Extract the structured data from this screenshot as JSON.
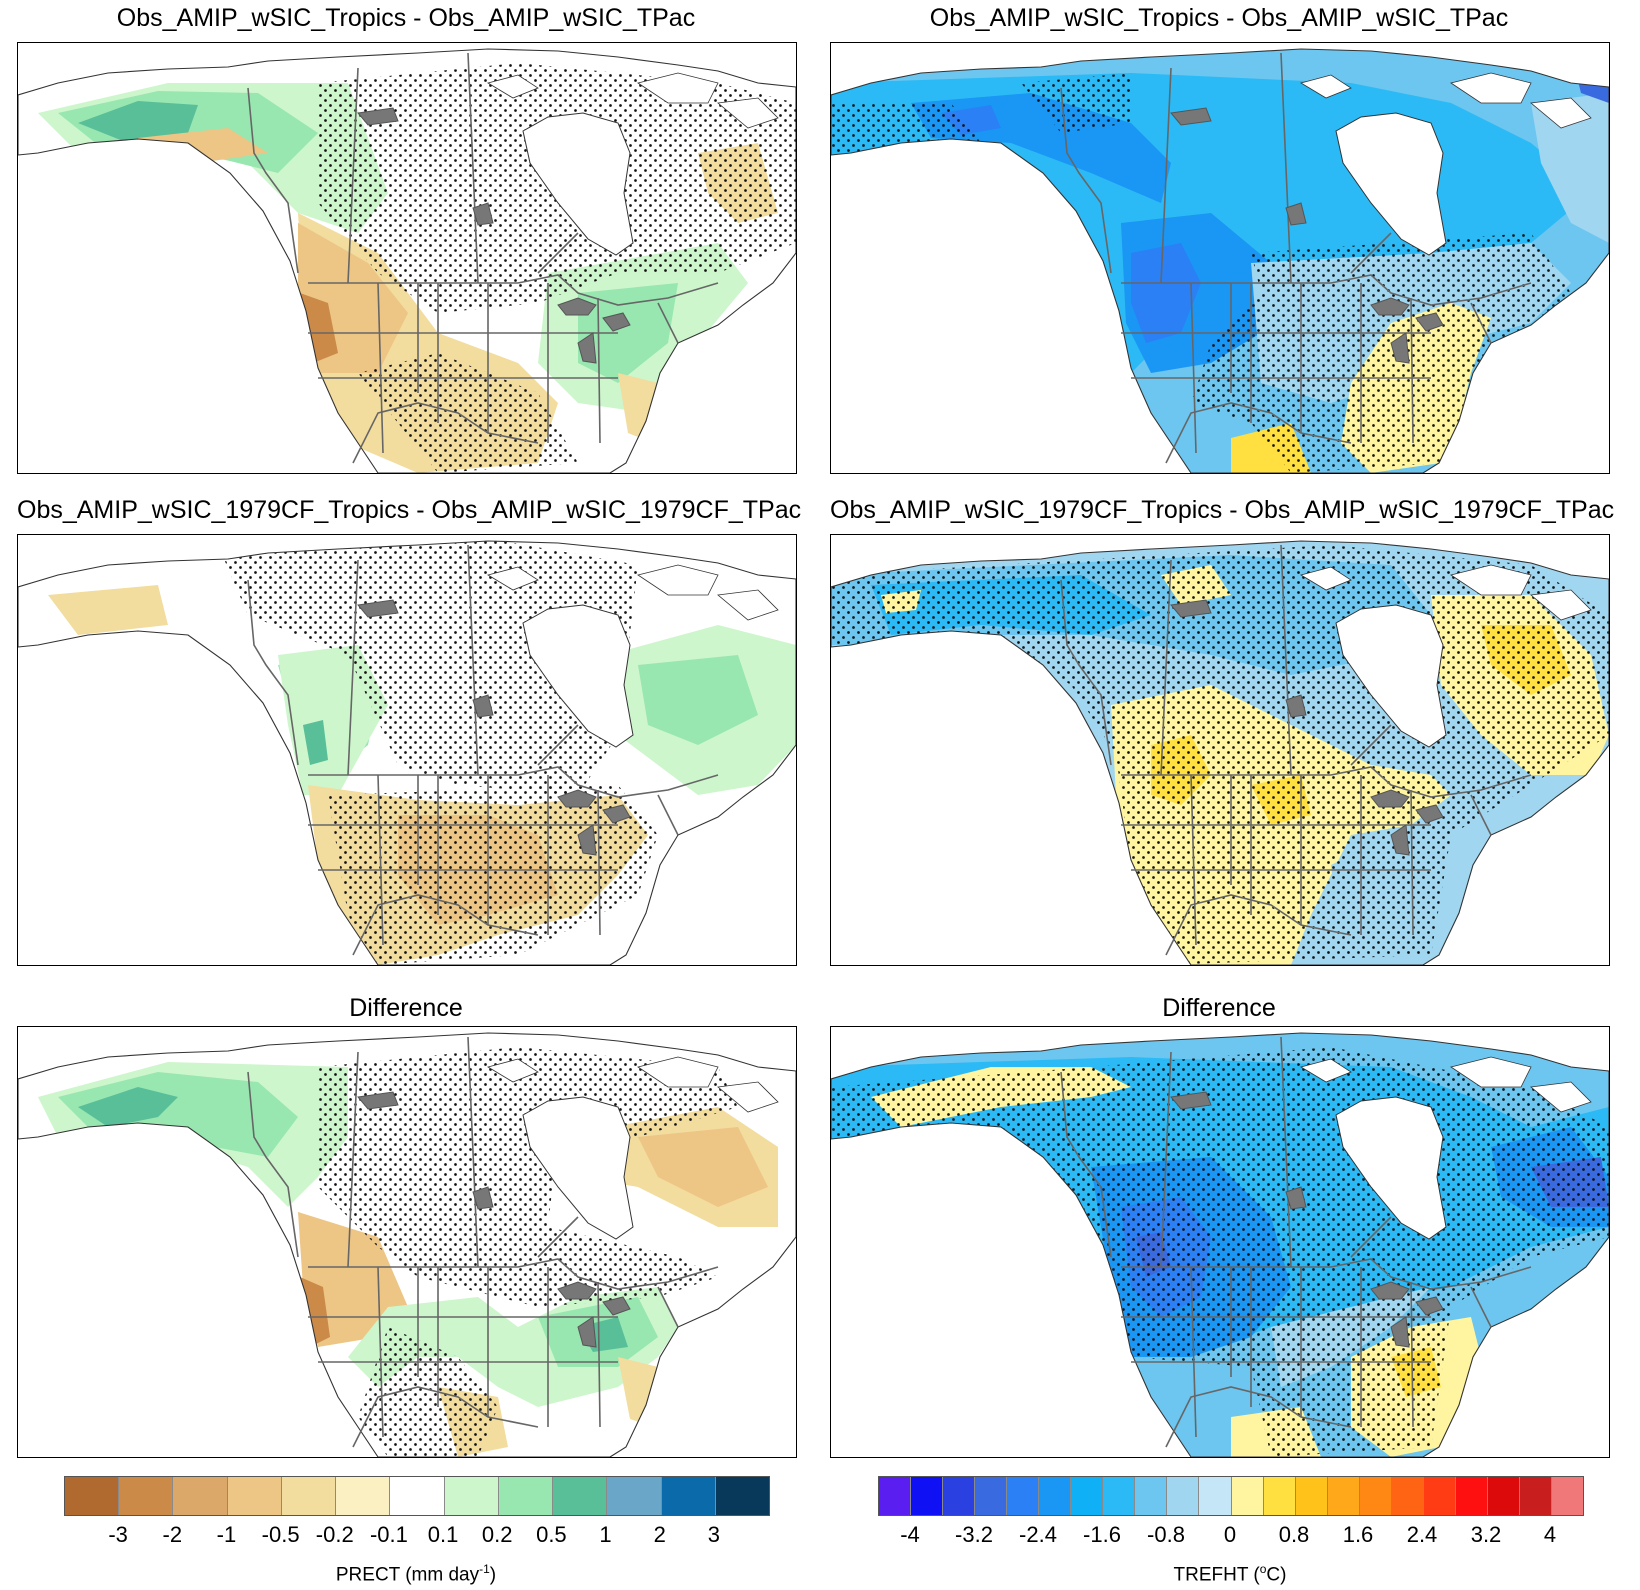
{
  "panels": {
    "p1": {
      "title": "Obs_AMIP_wSIC_Tropics - Obs_AMIP_wSIC_TPac",
      "variable": "PRECT",
      "style": "prect1"
    },
    "p2": {
      "title": "Obs_AMIP_wSIC_Tropics - Obs_AMIP_wSIC_TPac",
      "variable": "TREFHT",
      "style": "temp1"
    },
    "p3": {
      "title": "Obs_AMIP_wSIC_1979CF_Tropics - Obs_AMIP_wSIC_1979CF_TPac",
      "variable": "PRECT",
      "style": "prect2"
    },
    "p4": {
      "title": "Obs_AMIP_wSIC_1979CF_Tropics - Obs_AMIP_wSIC_1979CF_TPac",
      "variable": "TREFHT",
      "style": "temp2"
    },
    "p5": {
      "title": "Difference",
      "variable": "PRECT",
      "style": "prect3"
    },
    "p6": {
      "title": "Difference",
      "variable": "TREFHT",
      "style": "temp3"
    }
  },
  "colorbars": {
    "prect": {
      "label_main": "PRECT (mm day",
      "label_sup": "-1",
      "label_end": ")",
      "colors": [
        "#b06a30",
        "#cc8a48",
        "#dca86a",
        "#edc585",
        "#f2dc9e",
        "#faf0c2",
        "#ffffff",
        "#cdf6cc",
        "#98e6b0",
        "#58bf98",
        "#6aa6c8",
        "#0a6aaa",
        "#08385a"
      ],
      "ticks": [
        "-3",
        "-2",
        "-1",
        "-0.5",
        "-0.2",
        "-0.1",
        "0.1",
        "0.2",
        "0.5",
        "1",
        "2",
        "3"
      ]
    },
    "trefht": {
      "label_main": "TREFHT (",
      "label_sup": "o",
      "label_end": "C)",
      "colors": [
        "#5a1ef0",
        "#1010f5",
        "#2a40e0",
        "#3a6ae0",
        "#2b80f5",
        "#1a96f5",
        "#0fb0f5",
        "#2bbaf5",
        "#6cc6f0",
        "#a0d6f0",
        "#c4e6f6",
        "#fff5a0",
        "#ffe040",
        "#ffc21a",
        "#ffa81a",
        "#ff8814",
        "#ff6414",
        "#ff3c14",
        "#ff1010",
        "#dc0a0a",
        "#c81e1e",
        "#f07878"
      ],
      "ticks": [
        "-4",
        "-3.2",
        "-2.4",
        "-1.6",
        "-0.8",
        "0",
        "0.8",
        "1.6",
        "2.4",
        "3.2",
        "4"
      ]
    }
  }
}
